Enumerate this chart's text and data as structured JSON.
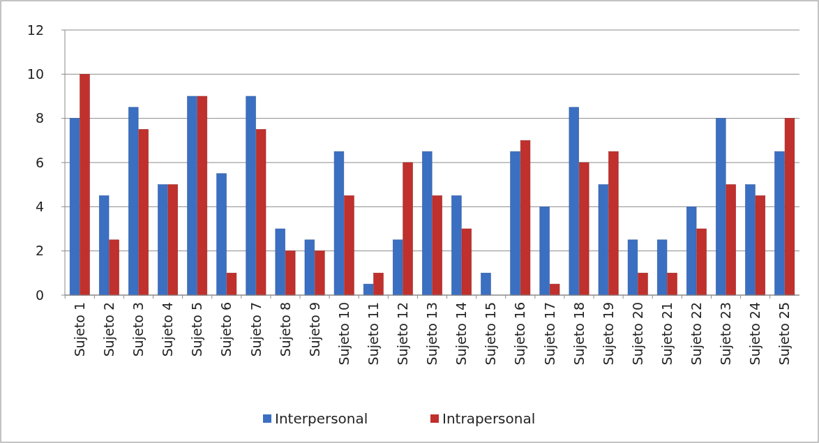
{
  "chart_data": {
    "type": "bar",
    "categories": [
      "Sujeto 1",
      "Sujeto 2",
      "Sujeto 3",
      "Sujeto 4",
      "Sujeto 5",
      "Sujeto 6",
      "Sujeto 7",
      "Sujeto 8",
      "Sujeto 9",
      "Sujeto 10",
      "Sujeto 11",
      "Sujeto 12",
      "Sujeto 13",
      "Sujeto 14",
      "Sujeto 15",
      "Sujeto 16",
      "Sujeto 17",
      "Sujeto 18",
      "Sujeto 19",
      "Sujeto 20",
      "Sujeto 21",
      "Sujeto 22",
      "Sujeto 23",
      "Sujeto 24",
      "Sujeto 25"
    ],
    "series": [
      {
        "name": "Interpersonal",
        "color": "#3b6fc2",
        "values": [
          8,
          4.5,
          8.5,
          5,
          9,
          5.5,
          9,
          3,
          2.5,
          6.5,
          0.5,
          2.5,
          6.5,
          4.5,
          1,
          6.5,
          4,
          8.5,
          5,
          2.5,
          2.5,
          4,
          8,
          5,
          6.5
        ]
      },
      {
        "name": "Intrapersonal",
        "color": "#c0302d",
        "values": [
          10,
          2.5,
          7.5,
          5,
          9,
          1,
          7.5,
          2,
          2,
          4.5,
          1,
          6,
          4.5,
          3,
          0,
          7,
          0.5,
          6,
          6.5,
          1,
          1,
          3,
          5,
          4.5,
          8
        ]
      }
    ],
    "ylim": [
      0,
      12
    ],
    "yticks": [
      0,
      2,
      4,
      6,
      8,
      10,
      12
    ],
    "grid": "y",
    "legend": "bottom"
  }
}
